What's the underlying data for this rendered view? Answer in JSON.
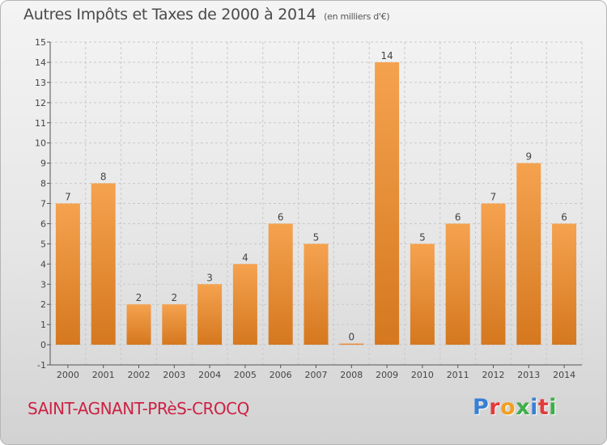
{
  "header": {
    "title": "Autres Impôts et Taxes de 2000 à 2014",
    "unit": "(en milliers d'€)"
  },
  "footer": {
    "commune": "SAINT-AGNANT-PRèS-CROCQ",
    "logo": "Proxiti",
    "logo_colors": [
      "#3a7fd5",
      "#e23b3b",
      "#f0a020",
      "#3fae49",
      "#3a7fd5",
      "#e23b3b",
      "#3fae49"
    ]
  },
  "chart_data": {
    "type": "bar",
    "title": "Autres Impôts et Taxes de 2000 à 2014",
    "subtitle": "(en milliers d'€)",
    "categories": [
      "2000",
      "2001",
      "2002",
      "2003",
      "2004",
      "2005",
      "2006",
      "2007",
      "2008",
      "2009",
      "2010",
      "2011",
      "2012",
      "2013",
      "2014"
    ],
    "values": [
      7,
      8,
      2,
      2,
      3,
      4,
      6,
      5,
      0,
      14,
      5,
      6,
      7,
      9,
      6
    ],
    "data_labels": [
      "7",
      "8",
      "2",
      "2",
      "3",
      "4",
      "6",
      "5",
      "0",
      "14",
      "5",
      "6",
      "7",
      "9",
      "6"
    ],
    "ylim": [
      -1,
      15
    ],
    "yticks": [
      "-1",
      "0",
      "1",
      "2",
      "3",
      "4",
      "5",
      "6",
      "7",
      "8",
      "9",
      "10",
      "11",
      "12",
      "13",
      "14",
      "15"
    ],
    "ytick_values": [
      -1,
      0,
      1,
      2,
      3,
      4,
      5,
      6,
      7,
      8,
      9,
      10,
      11,
      12,
      13,
      14,
      15
    ],
    "grid": true,
    "bar_color_top": "#f5a24f",
    "bar_color_bottom": "#d5781f",
    "grid_color": "#c8c8c8"
  }
}
